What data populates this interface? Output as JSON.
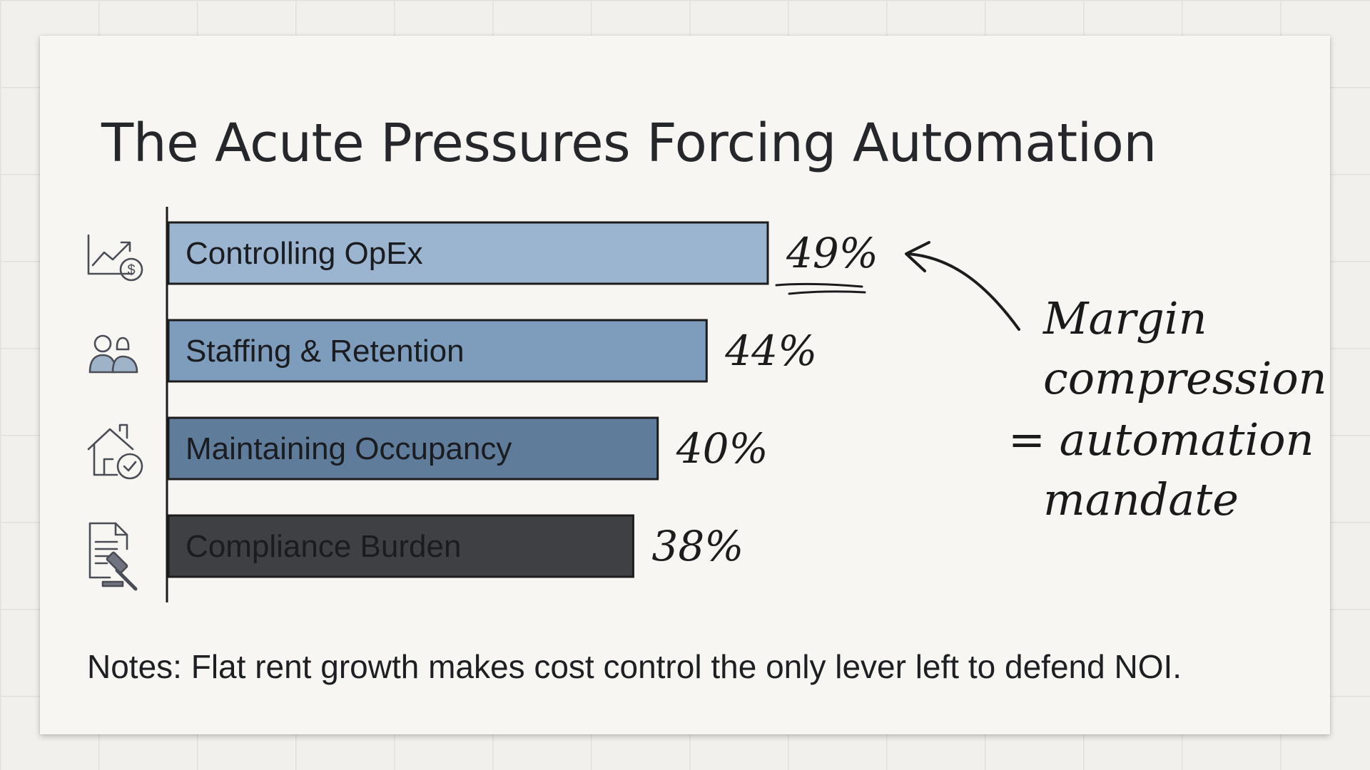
{
  "slide": {
    "title": "The Acute Pressures Forcing Automation",
    "notes": "Notes: Flat rent growth makes cost control the only lever left to defend NOI."
  },
  "icons": [
    "chart-dollar-icon",
    "people-icon",
    "house-check-icon",
    "document-gavel-icon"
  ],
  "chart_data": {
    "type": "bar",
    "orientation": "horizontal",
    "categories": [
      "Controlling OpEx",
      "Staffing & Retention",
      "Maintaining Occupancy",
      "Compliance Burden"
    ],
    "values": [
      49,
      44,
      40,
      38
    ],
    "value_labels": [
      "49%",
      "44%",
      "40%",
      "38%"
    ],
    "colors": [
      "#9bb5d0",
      "#7e9cbb",
      "#5f7c9b",
      "#3f4043"
    ],
    "highlight_category": "Controlling OpEx",
    "annotation": {
      "lines": [
        "Margin",
        "compression",
        "= automation",
        "mandate"
      ],
      "points_to": "Controlling OpEx"
    }
  }
}
